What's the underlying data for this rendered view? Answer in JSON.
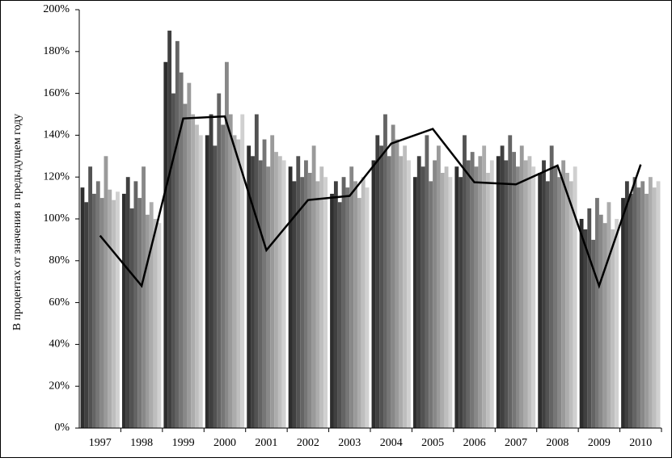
{
  "chart_data": {
    "type": "combo",
    "ylabel": "В процентах от значения в предыдущем году",
    "categories": [
      "1997",
      "1998",
      "1999",
      "2000",
      "2001",
      "2002",
      "2003",
      "2004",
      "2005",
      "2006",
      "2007",
      "2008",
      "2009",
      "2010"
    ],
    "ylim": [
      0,
      200
    ],
    "yticks": [
      {
        "value": 0,
        "label": "0%"
      },
      {
        "value": 20,
        "label": "20%"
      },
      {
        "value": 40,
        "label": "40%"
      },
      {
        "value": 60,
        "label": "60%"
      },
      {
        "value": 80,
        "label": "80%"
      },
      {
        "value": 100,
        "label": "100%"
      },
      {
        "value": 120,
        "label": "120%"
      },
      {
        "value": 140,
        "label": "140%"
      },
      {
        "value": 160,
        "label": "160%"
      },
      {
        "value": 180,
        "label": "180%"
      },
      {
        "value": 200,
        "label": "200%"
      }
    ],
    "series": [
      {
        "kind": "bar",
        "color": "#2e2e2e",
        "values": [
          115,
          112,
          175,
          140,
          135,
          125,
          112,
          128,
          120,
          125,
          130,
          122,
          100,
          110
        ]
      },
      {
        "kind": "bar",
        "color": "#404040",
        "values": [
          108,
          120,
          190,
          150,
          130,
          118,
          118,
          140,
          130,
          120,
          135,
          128,
          95,
          118
        ]
      },
      {
        "kind": "bar",
        "color": "#525252",
        "values": [
          125,
          105,
          160,
          135,
          150,
          130,
          108,
          135,
          125,
          140,
          128,
          118,
          105,
          112
        ]
      },
      {
        "kind": "bar",
        "color": "#646464",
        "values": [
          112,
          118,
          185,
          160,
          128,
          120,
          120,
          150,
          140,
          128,
          140,
          135,
          90,
          120
        ]
      },
      {
        "kind": "bar",
        "color": "#767676",
        "values": [
          118,
          110,
          170,
          145,
          138,
          128,
          115,
          130,
          118,
          132,
          132,
          125,
          110,
          115
        ]
      },
      {
        "kind": "bar",
        "color": "#888888",
        "values": [
          110,
          125,
          155,
          175,
          125,
          122,
          125,
          145,
          128,
          125,
          125,
          120,
          102,
          118
        ]
      },
      {
        "kind": "bar",
        "color": "#9a9a9a",
        "values": [
          130,
          102,
          165,
          150,
          140,
          135,
          118,
          138,
          135,
          130,
          135,
          128,
          98,
          112
        ]
      },
      {
        "kind": "bar",
        "color": "#acacac",
        "values": [
          114,
          108,
          150,
          140,
          132,
          118,
          110,
          130,
          122,
          135,
          128,
          122,
          108,
          120
        ]
      },
      {
        "kind": "bar",
        "color": "#bebebe",
        "values": [
          109,
          100,
          145,
          138,
          130,
          125,
          120,
          135,
          125,
          122,
          130,
          118,
          95,
          115
        ]
      },
      {
        "kind": "bar",
        "color": "#d0d0d0",
        "values": [
          113,
          98,
          140,
          150,
          128,
          120,
          115,
          128,
          120,
          128,
          125,
          125,
          100,
          118
        ]
      },
      {
        "kind": "line",
        "color": "#000000",
        "values": [
          92,
          68,
          148,
          149,
          85,
          109,
          111,
          136,
          143,
          117.5,
          116.5,
          125.5,
          68,
          126
        ]
      }
    ]
  }
}
